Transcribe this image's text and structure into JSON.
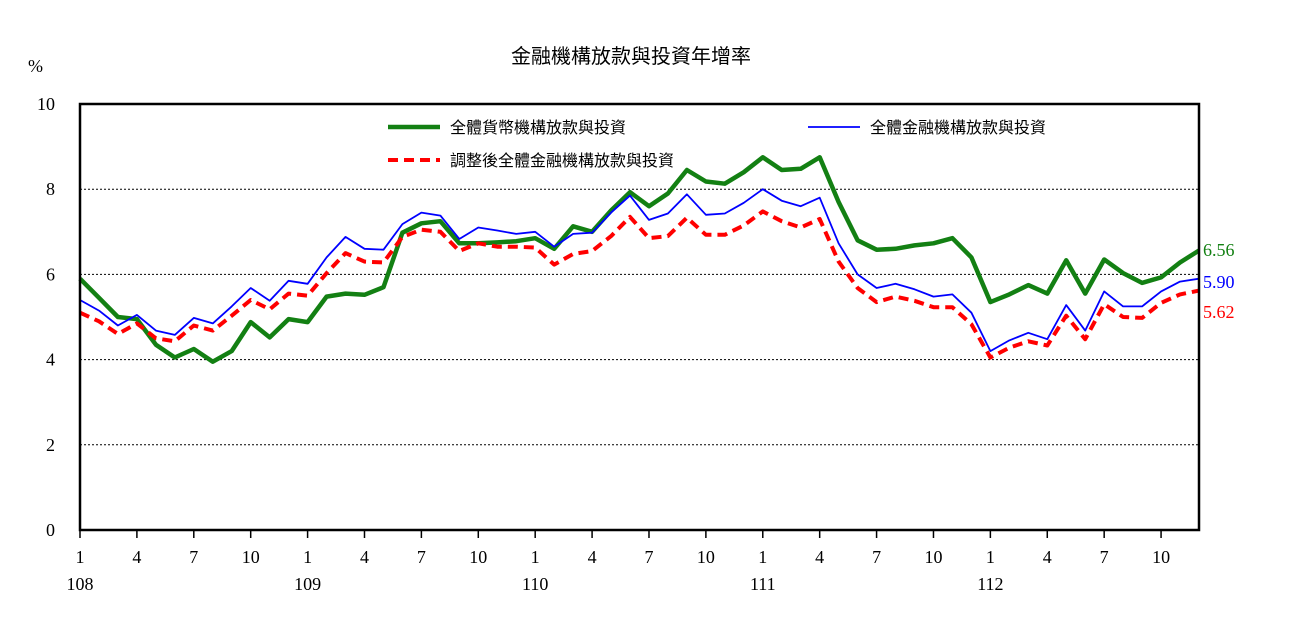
{
  "chart_data": {
    "type": "line",
    "title": "金融機構放款與投資年增率",
    "ylabel": "%",
    "ylim": [
      0,
      10
    ],
    "yticks": [
      0,
      2,
      4,
      6,
      8,
      10
    ],
    "x_month_ticks": [
      "1",
      "4",
      "7",
      "10",
      "1",
      "4",
      "7",
      "10",
      "1",
      "4",
      "7",
      "10",
      "1",
      "4",
      "7",
      "10",
      "1",
      "4",
      "7",
      "10"
    ],
    "x_year_ticks": [
      "108",
      "109",
      "110",
      "111",
      "112"
    ],
    "grid": true,
    "legend_position": "top",
    "series": [
      {
        "name": "全體貨幣機構放款與投資",
        "color": "#138013",
        "style": "solid-thick",
        "end_label": "6.56",
        "values": [
          5.9,
          5.45,
          5.0,
          4.95,
          4.35,
          4.05,
          4.25,
          3.95,
          4.2,
          4.88,
          4.52,
          4.95,
          4.88,
          5.48,
          5.55,
          5.52,
          5.7,
          6.98,
          7.2,
          7.25,
          6.73,
          6.73,
          6.75,
          6.78,
          6.85,
          6.6,
          7.13,
          7.0,
          7.5,
          7.93,
          7.6,
          7.9,
          8.45,
          8.18,
          8.13,
          8.4,
          8.75,
          8.45,
          8.48,
          8.75,
          7.7,
          6.8,
          6.58,
          6.6,
          6.68,
          6.73,
          6.85,
          6.4,
          5.35,
          5.53,
          5.75,
          5.55,
          6.33,
          5.55,
          6.35,
          6.03,
          5.8,
          5.93,
          6.28,
          6.56
        ]
      },
      {
        "name": "全體金融機構放款與投資",
        "color": "#0000ff",
        "style": "solid-thin",
        "end_label": "5.90",
        "values": [
          5.4,
          5.15,
          4.8,
          5.05,
          4.68,
          4.58,
          4.98,
          4.85,
          5.25,
          5.68,
          5.38,
          5.85,
          5.78,
          6.4,
          6.88,
          6.6,
          6.58,
          7.18,
          7.45,
          7.38,
          6.83,
          7.1,
          7.03,
          6.95,
          7.0,
          6.65,
          6.95,
          6.98,
          7.45,
          7.85,
          7.28,
          7.43,
          7.88,
          7.4,
          7.43,
          7.68,
          8.0,
          7.73,
          7.6,
          7.8,
          6.73,
          6.0,
          5.68,
          5.78,
          5.65,
          5.48,
          5.53,
          5.1,
          4.2,
          4.45,
          4.63,
          4.48,
          5.28,
          4.68,
          5.6,
          5.25,
          5.25,
          5.6,
          5.83,
          5.9
        ]
      },
      {
        "name": "調整後全體金融機構放款與投資",
        "color": "#ff0000",
        "style": "dashed",
        "end_label": "5.62",
        "values": [
          5.1,
          4.9,
          4.6,
          4.85,
          4.5,
          4.43,
          4.8,
          4.68,
          5.03,
          5.4,
          5.18,
          5.55,
          5.5,
          6.03,
          6.5,
          6.3,
          6.28,
          6.88,
          7.05,
          7.0,
          6.55,
          6.73,
          6.65,
          6.65,
          6.63,
          6.23,
          6.48,
          6.55,
          6.9,
          7.35,
          6.85,
          6.9,
          7.33,
          6.93,
          6.93,
          7.15,
          7.48,
          7.25,
          7.1,
          7.3,
          6.3,
          5.68,
          5.35,
          5.48,
          5.38,
          5.23,
          5.23,
          4.83,
          4.05,
          4.28,
          4.43,
          4.33,
          5.03,
          4.48,
          5.3,
          5.0,
          4.98,
          5.33,
          5.53,
          5.62
        ]
      }
    ]
  }
}
